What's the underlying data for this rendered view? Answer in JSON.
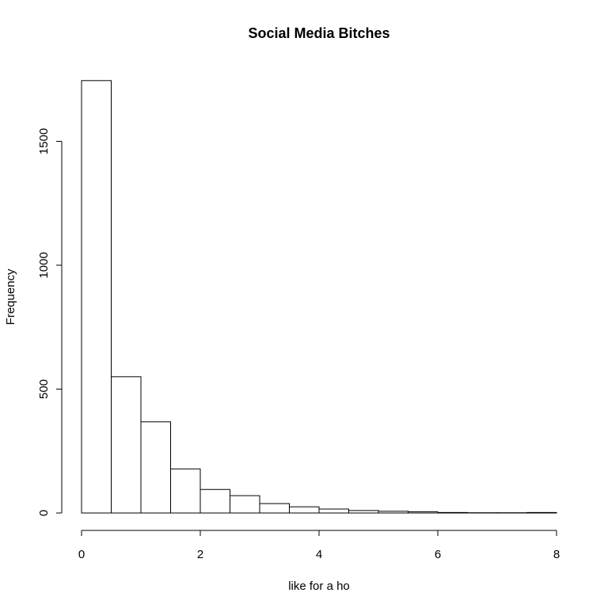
{
  "chart_data": {
    "type": "bar",
    "title": "Social Media Bitches",
    "xlabel": "like for a ho",
    "ylabel": "Frequency",
    "bin_width": 0.5,
    "bins": [
      {
        "x0": 0.0,
        "x1": 0.5,
        "count": 1745
      },
      {
        "x0": 0.5,
        "x1": 1.0,
        "count": 550
      },
      {
        "x0": 1.0,
        "x1": 1.5,
        "count": 368
      },
      {
        "x0": 1.5,
        "x1": 2.0,
        "count": 178
      },
      {
        "x0": 2.0,
        "x1": 2.5,
        "count": 95
      },
      {
        "x0": 2.5,
        "x1": 3.0,
        "count": 70
      },
      {
        "x0": 3.0,
        "x1": 3.5,
        "count": 38
      },
      {
        "x0": 3.5,
        "x1": 4.0,
        "count": 25
      },
      {
        "x0": 4.0,
        "x1": 4.5,
        "count": 16
      },
      {
        "x0": 4.5,
        "x1": 5.0,
        "count": 10
      },
      {
        "x0": 5.0,
        "x1": 5.5,
        "count": 7
      },
      {
        "x0": 5.5,
        "x1": 6.0,
        "count": 5
      },
      {
        "x0": 6.0,
        "x1": 6.5,
        "count": 2
      },
      {
        "x0": 6.5,
        "x1": 7.0,
        "count": 1
      },
      {
        "x0": 7.0,
        "x1": 7.5,
        "count": 1
      },
      {
        "x0": 7.5,
        "x1": 8.0,
        "count": 2
      }
    ],
    "xlim": [
      0,
      8
    ],
    "ylim": [
      0,
      1750
    ],
    "xticks": [
      0,
      2,
      4,
      6,
      8
    ],
    "yticks": [
      0,
      500,
      1000,
      1500
    ],
    "grid": false
  }
}
